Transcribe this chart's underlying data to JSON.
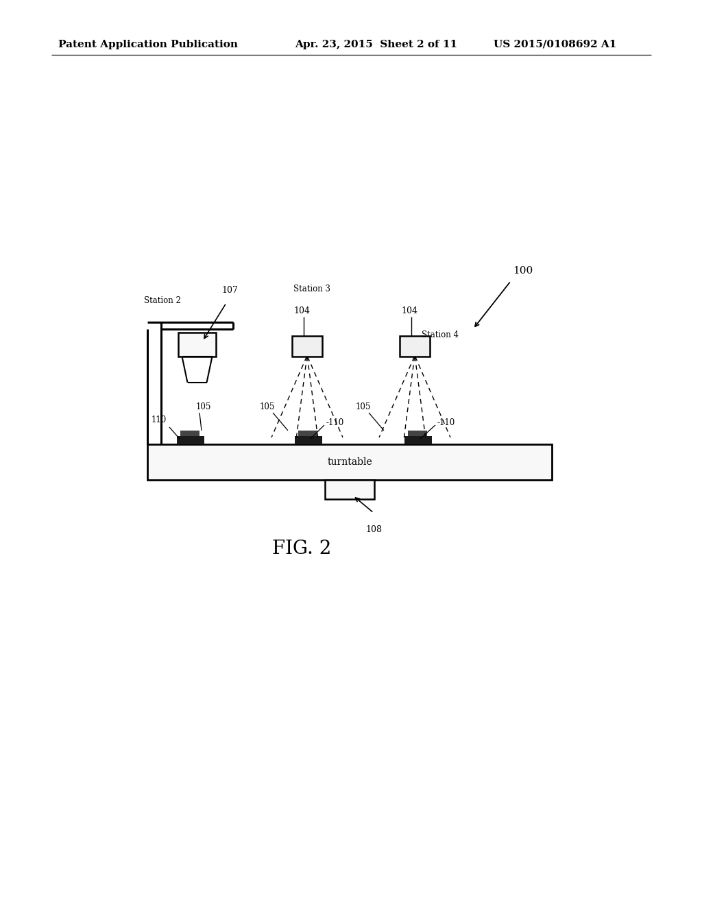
{
  "bg_color": "#ffffff",
  "header_left": "Patent Application Publication",
  "header_mid": "Apr. 23, 2015  Sheet 2 of 11",
  "header_right": "US 2015/0108692 A1",
  "fig_label": "FIG. 2",
  "fig_label_fontsize": 20,
  "label_100": "100",
  "label_107": "107",
  "label_108": "108",
  "label_104": "104",
  "label_105": "105",
  "label_110": "110",
  "station2": "Station 2",
  "station3": "Station 3",
  "station4": "Station 4",
  "turntable_text": "turntable"
}
